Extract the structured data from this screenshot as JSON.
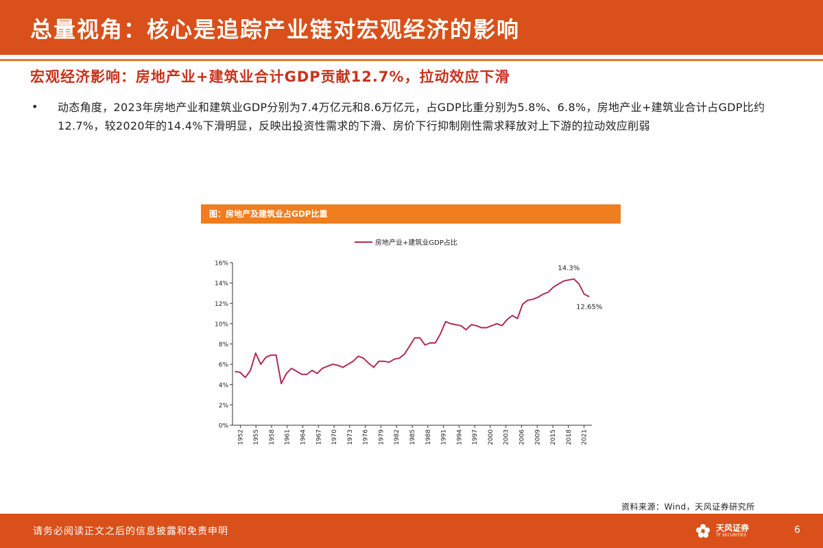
{
  "header": {
    "title": "总量视角：核心是追踪产业链对宏观经济的影响"
  },
  "subtitle": "宏观经济影响：房地产业+建筑业合计GDP贡献12.7%，拉动效应下滑",
  "bullet": {
    "symbol": "•",
    "text": "动态角度，2023年房地产业和建筑业GDP分别为7.4万亿元和8.6万亿元，占GDP比重分别为5.8%、6.8%，房地产业+建筑业合计占GDP比约12.7%，较2020年的14.4%下滑明显，反映出投资性需求的下滑、房价下行抑制刚性需求释放对上下游的拉动效应削弱"
  },
  "figure": {
    "title": "图：房地产及建筑业占GDP比重"
  },
  "chart_data": {
    "type": "line",
    "title": "",
    "xlabel": "",
    "ylabel": "",
    "ylim": [
      0,
      16
    ],
    "yticks": [
      "0%",
      "2%",
      "4%",
      "6%",
      "8%",
      "10%",
      "12%",
      "14%",
      "16%"
    ],
    "xticks": [
      "1952",
      "1955",
      "1958",
      "1961",
      "1964",
      "1967",
      "1970",
      "1973",
      "1976",
      "1979",
      "1982",
      "1985",
      "1988",
      "1991",
      "1994",
      "1997",
      "2000",
      "2003",
      "2006",
      "2009",
      "2015",
      "2018",
      "2021"
    ],
    "legend": "top",
    "grid": false,
    "color": "#b22a4f",
    "series": [
      {
        "name": "房地产业+建筑业GDP占比",
        "values": [
          5.3,
          5.2,
          4.7,
          5.4,
          7.1,
          6.0,
          6.7,
          6.9,
          6.9,
          4.1,
          5.1,
          5.6,
          5.3,
          5.0,
          5.0,
          5.4,
          5.1,
          5.6,
          5.8,
          6.0,
          5.9,
          5.7,
          6.0,
          6.3,
          6.8,
          6.6,
          6.1,
          5.7,
          6.3,
          6.3,
          6.2,
          6.5,
          6.6,
          7.0,
          7.8,
          8.6,
          8.6,
          7.9,
          8.1,
          8.1,
          9.0,
          10.2,
          10.0,
          9.9,
          9.8,
          9.4,
          9.9,
          9.8,
          9.6,
          9.6,
          9.8,
          10.0,
          9.8,
          10.4,
          10.8,
          10.5,
          11.9,
          12.3,
          12.4,
          12.6,
          12.9,
          13.1,
          13.6,
          13.9,
          14.2,
          14.3,
          14.4,
          13.9,
          12.9,
          12.65
        ]
      }
    ],
    "annotations": [
      {
        "text": "14.3%",
        "x_index": 65
      },
      {
        "text": "12.65%",
        "x_index": 69
      }
    ]
  },
  "source": "资料来源：Wind，天风证券研究所",
  "footer": {
    "disclaimer": "请务必阅读正文之后的信息披露和免责申明",
    "brand_cn": "天风证券",
    "brand_en": "TF SECURITIES",
    "page": "6"
  }
}
